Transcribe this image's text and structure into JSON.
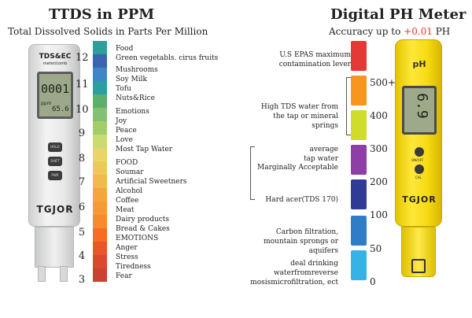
{
  "left": {
    "title": "TTDS in PPM",
    "subtitle": "Total Dissolved Solids in Parts Per Million",
    "meter": {
      "brand": "TDS&EC",
      "sub": "meter/comb",
      "reading": "0001",
      "unit": "ppm",
      "temp": "65.6",
      "buttons": [
        "HOLD",
        "SHIFT",
        "PWR"
      ],
      "logo": "TGJOR"
    },
    "scale_colors": [
      "#2f9d9a",
      "#3b64b1",
      "#3e87c4",
      "#2b9fa1",
      "#5cb06c",
      "#84c073",
      "#a3cd6a",
      "#c8dc73",
      "#e8d46a",
      "#eec85a",
      "#f2b94c",
      "#f4a63d",
      "#f69937",
      "#f78a2d",
      "#f66c25",
      "#e8572a",
      "#d9492d",
      "#c94232"
    ],
    "numbers": [
      "12",
      "11",
      "10",
      "9",
      "8",
      "7",
      "6",
      "5",
      "4",
      "3"
    ],
    "labels": [
      [
        "Food",
        "Green vegetabls. cirus fruits"
      ],
      [
        "Mushrooms",
        "Soy Milk",
        "Tofu",
        "Nuts&Rice"
      ],
      [
        "Emotions",
        "Joy",
        "Peace",
        "Love",
        "Most Tap Water"
      ],
      [
        "FOOD",
        "Soumar",
        "Artificial Sweetners",
        "Alcohol",
        "Coffee",
        "Meat",
        "Dairy products",
        "Bread & Cakes"
      ],
      [
        "EMOTIONS",
        "Anger",
        "Stress",
        "Tiredness",
        "Fear"
      ]
    ]
  },
  "right": {
    "title": "Digital PH Meter",
    "accuracy_prefix": "Accuracy up to ",
    "accuracy_value": "+0.01",
    "accuracy_suffix": " PH",
    "scale_colors": [
      "#e53935",
      "#f7961d",
      "#cfdc2a",
      "#8e3fa7",
      "#2f3b96",
      "#2f7dc8",
      "#35b2e6"
    ],
    "numbers": [
      "500+",
      "400",
      "300",
      "200",
      "100",
      "50",
      "0"
    ],
    "descriptions": {
      "epa": "U.S EPAS maximum contamination lever",
      "high_tds": "High TDS water from the tap or mineral springs",
      "average": "average",
      "tap": "tap water",
      "marginal": "Marginally Acceptable",
      "hard": "Hard acer(TDS 170)",
      "carbon": "Carbon filtration, mountain sprongs or aquifers",
      "ideal": "deal drinking waterfromreverse mosismicrofiltration, ect"
    },
    "meter": {
      "label": "pH",
      "reading": "6.9",
      "btn1": "ON/OFF",
      "btn2": "CAL",
      "logo": "TGJOR"
    }
  }
}
